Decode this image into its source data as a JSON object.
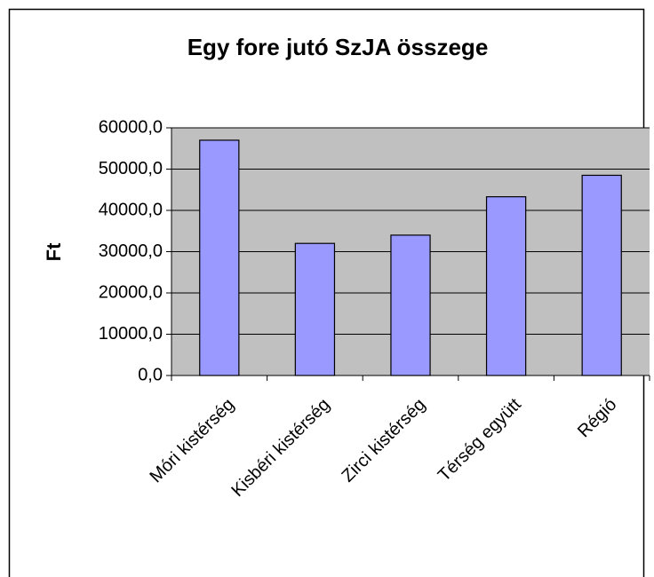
{
  "chart_data": {
    "type": "bar",
    "title": "Egy fore jutó SzJA összege",
    "ylabel": "Ft",
    "categories": [
      "Móri kistérség",
      "Kisbéri kistérség",
      "Zirci kistérség",
      "Térség együtt",
      "Régió"
    ],
    "values": [
      57000,
      32000,
      34000,
      43300,
      48500
    ],
    "color": "#9999ff",
    "ylim": [
      0,
      60000
    ],
    "yticks": [
      {
        "value": 0,
        "label": "0,0"
      },
      {
        "value": 10000,
        "label": "10000,0"
      },
      {
        "value": 20000,
        "label": "20000,0"
      },
      {
        "value": 30000,
        "label": "30000,0"
      },
      {
        "value": 40000,
        "label": "40000,0"
      },
      {
        "value": 50000,
        "label": "50000,0"
      },
      {
        "value": 60000,
        "label": "60000,0"
      }
    ],
    "grid": true
  }
}
